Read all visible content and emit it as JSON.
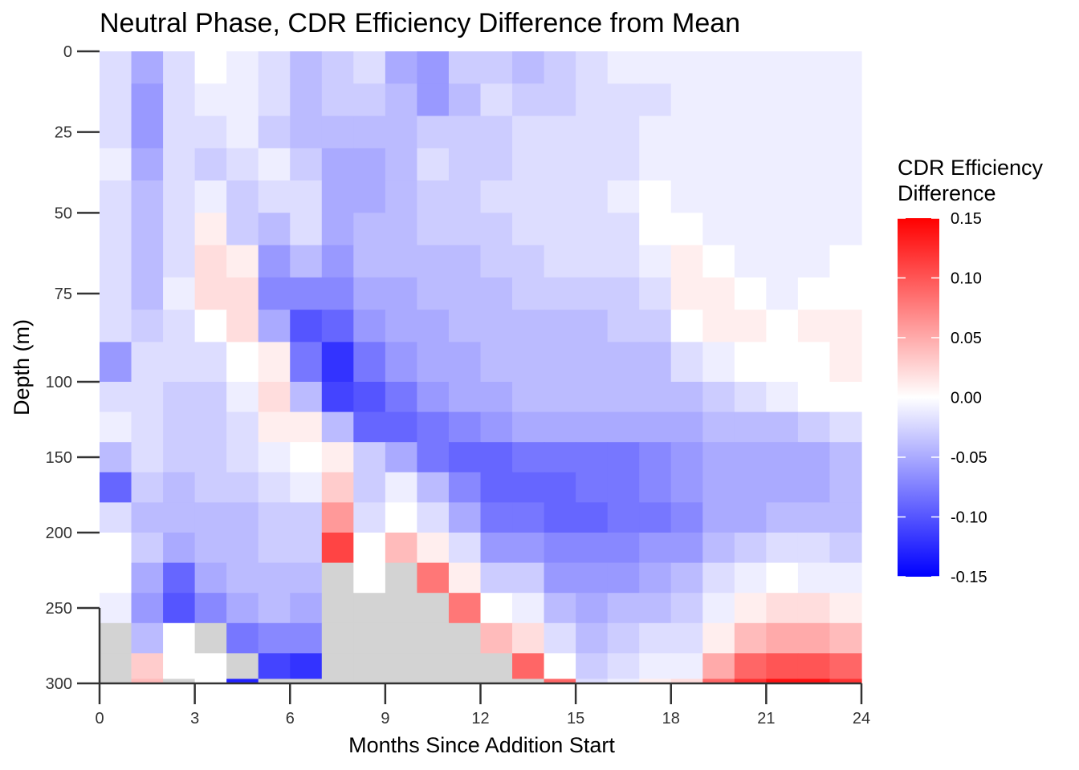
{
  "chart_data": {
    "type": "heatmap",
    "title": "Neutral Phase, CDR Efficiency Difference from Mean",
    "xlabel": "Months Since Addition Start",
    "ylabel": "Depth (m)",
    "xlim": [
      0,
      24
    ],
    "ylim": [
      0,
      300
    ],
    "y_reversed": true,
    "x_ticks": [
      0,
      3,
      6,
      9,
      12,
      15,
      18,
      21,
      24
    ],
    "y_ticks": [
      0,
      25,
      50,
      75,
      100,
      150,
      200,
      250,
      300
    ],
    "x_months": [
      0.5,
      1.5,
      2.5,
      3.5,
      4.5,
      5.5,
      6.5,
      7.5,
      8.5,
      9.5,
      10.5,
      11.5,
      12.5,
      13.5,
      14.5,
      15.5,
      16.5,
      17.5,
      18.5,
      19.5,
      20.5,
      21.5,
      22.5,
      23.5
    ],
    "depth_levels": [
      5,
      15,
      25,
      35,
      45,
      55,
      65,
      75,
      85,
      95,
      110,
      130,
      150,
      170,
      190,
      210,
      230,
      250,
      270,
      290
    ],
    "legend": {
      "title_line1": "CDR Efficiency",
      "title_line2": "Difference",
      "placement": "right",
      "min": -0.15,
      "max": 0.15,
      "ticks": [
        "0.15",
        "0.10",
        "0.05",
        "0.00",
        "-0.05",
        "-0.10",
        "-0.15"
      ],
      "tick_values": [
        0.15,
        0.1,
        0.05,
        0.0,
        -0.05,
        -0.1,
        -0.15
      ],
      "color_low": "#0000FF",
      "color_mid": "#FFFFFF",
      "color_high": "#FF0000",
      "na_color": "#D3D3D3"
    },
    "values": [
      [
        -0.02,
        -0.05,
        -0.02,
        0.0,
        -0.01,
        -0.02,
        -0.04,
        -0.03,
        -0.02,
        -0.05,
        -0.06,
        -0.03,
        -0.03,
        -0.04,
        -0.03,
        -0.02,
        -0.01,
        -0.01,
        -0.01,
        -0.01,
        -0.01,
        -0.01,
        -0.01,
        -0.01
      ],
      [
        -0.02,
        -0.06,
        -0.02,
        -0.01,
        -0.01,
        -0.02,
        -0.04,
        -0.03,
        -0.03,
        -0.04,
        -0.06,
        -0.04,
        -0.02,
        -0.03,
        -0.03,
        -0.02,
        -0.02,
        -0.02,
        -0.01,
        -0.01,
        -0.01,
        -0.01,
        -0.01,
        -0.01
      ],
      [
        -0.02,
        -0.06,
        -0.02,
        -0.02,
        -0.01,
        -0.03,
        -0.04,
        -0.04,
        -0.04,
        -0.04,
        -0.03,
        -0.03,
        -0.03,
        -0.02,
        -0.02,
        -0.02,
        -0.02,
        -0.01,
        -0.01,
        -0.01,
        -0.01,
        -0.01,
        -0.01,
        -0.01
      ],
      [
        -0.01,
        -0.05,
        -0.02,
        -0.03,
        -0.02,
        -0.01,
        -0.03,
        -0.05,
        -0.05,
        -0.04,
        -0.02,
        -0.03,
        -0.03,
        -0.02,
        -0.02,
        -0.02,
        -0.02,
        -0.01,
        -0.01,
        -0.01,
        -0.01,
        -0.01,
        -0.01,
        -0.01
      ],
      [
        -0.02,
        -0.04,
        -0.02,
        -0.01,
        -0.03,
        -0.02,
        -0.02,
        -0.05,
        -0.05,
        -0.04,
        -0.03,
        -0.03,
        -0.02,
        -0.02,
        -0.02,
        -0.02,
        -0.01,
        0.0,
        -0.01,
        -0.01,
        -0.01,
        -0.01,
        -0.01,
        -0.01
      ],
      [
        -0.02,
        -0.04,
        -0.02,
        0.01,
        -0.03,
        -0.04,
        -0.02,
        -0.05,
        -0.04,
        -0.04,
        -0.03,
        -0.03,
        -0.03,
        -0.02,
        -0.02,
        -0.02,
        -0.02,
        0.0,
        0.0,
        -0.01,
        -0.01,
        -0.01,
        -0.01,
        -0.01
      ],
      [
        -0.02,
        -0.04,
        -0.02,
        0.02,
        0.01,
        -0.06,
        -0.04,
        -0.06,
        -0.04,
        -0.04,
        -0.04,
        -0.04,
        -0.03,
        -0.03,
        -0.02,
        -0.02,
        -0.02,
        -0.01,
        0.01,
        0.0,
        -0.01,
        -0.01,
        -0.01,
        0.0
      ],
      [
        -0.02,
        -0.04,
        -0.01,
        0.02,
        0.02,
        -0.07,
        -0.07,
        -0.07,
        -0.05,
        -0.05,
        -0.04,
        -0.04,
        -0.04,
        -0.03,
        -0.03,
        -0.03,
        -0.03,
        -0.02,
        0.01,
        0.01,
        0.0,
        -0.01,
        0.0,
        0.0
      ],
      [
        -0.02,
        -0.03,
        -0.02,
        0.0,
        0.02,
        -0.05,
        -0.1,
        -0.09,
        -0.06,
        -0.05,
        -0.05,
        -0.04,
        -0.04,
        -0.04,
        -0.04,
        -0.04,
        -0.03,
        -0.03,
        0.0,
        0.01,
        0.01,
        0.0,
        0.01,
        0.01
      ],
      [
        -0.06,
        -0.02,
        -0.02,
        -0.02,
        0.0,
        0.01,
        -0.08,
        -0.12,
        -0.08,
        -0.06,
        -0.05,
        -0.05,
        -0.04,
        -0.04,
        -0.04,
        -0.04,
        -0.04,
        -0.04,
        -0.02,
        -0.01,
        0.0,
        0.0,
        0.0,
        0.01
      ],
      [
        -0.02,
        -0.02,
        -0.03,
        -0.03,
        -0.01,
        0.02,
        -0.04,
        -0.11,
        -0.1,
        -0.08,
        -0.06,
        -0.05,
        -0.05,
        -0.04,
        -0.04,
        -0.04,
        -0.04,
        -0.04,
        -0.04,
        -0.03,
        -0.02,
        -0.01,
        0.0,
        0.0
      ],
      [
        -0.01,
        -0.02,
        -0.03,
        -0.03,
        -0.02,
        0.01,
        0.01,
        -0.04,
        -0.09,
        -0.09,
        -0.08,
        -0.07,
        -0.06,
        -0.05,
        -0.05,
        -0.05,
        -0.05,
        -0.05,
        -0.05,
        -0.04,
        -0.04,
        -0.04,
        -0.03,
        -0.02
      ],
      [
        -0.04,
        -0.02,
        -0.03,
        -0.03,
        -0.02,
        -0.01,
        0.0,
        0.01,
        -0.03,
        -0.05,
        -0.08,
        -0.09,
        -0.09,
        -0.08,
        -0.08,
        -0.08,
        -0.08,
        -0.07,
        -0.06,
        -0.05,
        -0.05,
        -0.05,
        -0.05,
        -0.04
      ],
      [
        -0.09,
        -0.03,
        -0.04,
        -0.03,
        -0.03,
        -0.02,
        -0.01,
        0.03,
        -0.03,
        -0.01,
        -0.04,
        -0.07,
        -0.09,
        -0.09,
        -0.09,
        -0.08,
        -0.08,
        -0.07,
        -0.06,
        -0.05,
        -0.05,
        -0.05,
        -0.05,
        -0.04
      ],
      [
        -0.02,
        -0.04,
        -0.04,
        -0.04,
        -0.04,
        -0.03,
        -0.03,
        0.06,
        -0.02,
        0.0,
        -0.02,
        -0.05,
        -0.08,
        -0.08,
        -0.09,
        -0.09,
        -0.08,
        -0.08,
        -0.07,
        -0.05,
        -0.05,
        -0.04,
        -0.04,
        -0.04
      ],
      [
        0.0,
        -0.03,
        -0.05,
        -0.04,
        -0.04,
        -0.03,
        -0.03,
        0.11,
        0.0,
        0.04,
        0.01,
        -0.02,
        -0.06,
        -0.06,
        -0.07,
        -0.07,
        -0.07,
        -0.06,
        -0.06,
        -0.04,
        -0.03,
        -0.02,
        -0.02,
        -0.03
      ],
      [
        0.0,
        -0.05,
        -0.09,
        -0.05,
        -0.04,
        -0.04,
        -0.04,
        null,
        0.0,
        null,
        0.08,
        0.01,
        -0.03,
        -0.03,
        -0.06,
        -0.06,
        -0.06,
        -0.05,
        -0.04,
        -0.02,
        -0.01,
        0.0,
        -0.01,
        -0.01
      ],
      [
        -0.01,
        -0.06,
        -0.1,
        -0.07,
        -0.05,
        -0.04,
        -0.05,
        null,
        null,
        null,
        null,
        0.08,
        0.0,
        -0.01,
        -0.04,
        -0.05,
        -0.04,
        -0.04,
        -0.03,
        -0.01,
        0.01,
        0.02,
        0.02,
        0.01
      ],
      [
        null,
        -0.04,
        0.0,
        null,
        -0.08,
        -0.07,
        -0.07,
        null,
        null,
        null,
        null,
        null,
        0.04,
        0.02,
        -0.02,
        -0.04,
        -0.03,
        -0.02,
        -0.02,
        0.01,
        0.04,
        0.05,
        0.05,
        0.04
      ],
      [
        null,
        0.03,
        0.0,
        0.0,
        null,
        -0.11,
        -0.12,
        null,
        null,
        null,
        null,
        null,
        null,
        0.09,
        0.0,
        -0.03,
        -0.02,
        -0.01,
        -0.01,
        0.05,
        0.09,
        0.1,
        0.1,
        0.09
      ]
    ],
    "bottom_edge_values": [
      null,
      0.04,
      null,
      0.0,
      -0.13,
      null,
      null,
      null,
      null,
      null,
      null,
      null,
      null,
      null,
      0.09,
      -0.02,
      -0.01,
      0.01,
      0.02,
      0.09,
      0.12,
      0.14,
      0.14,
      0.12
    ]
  }
}
